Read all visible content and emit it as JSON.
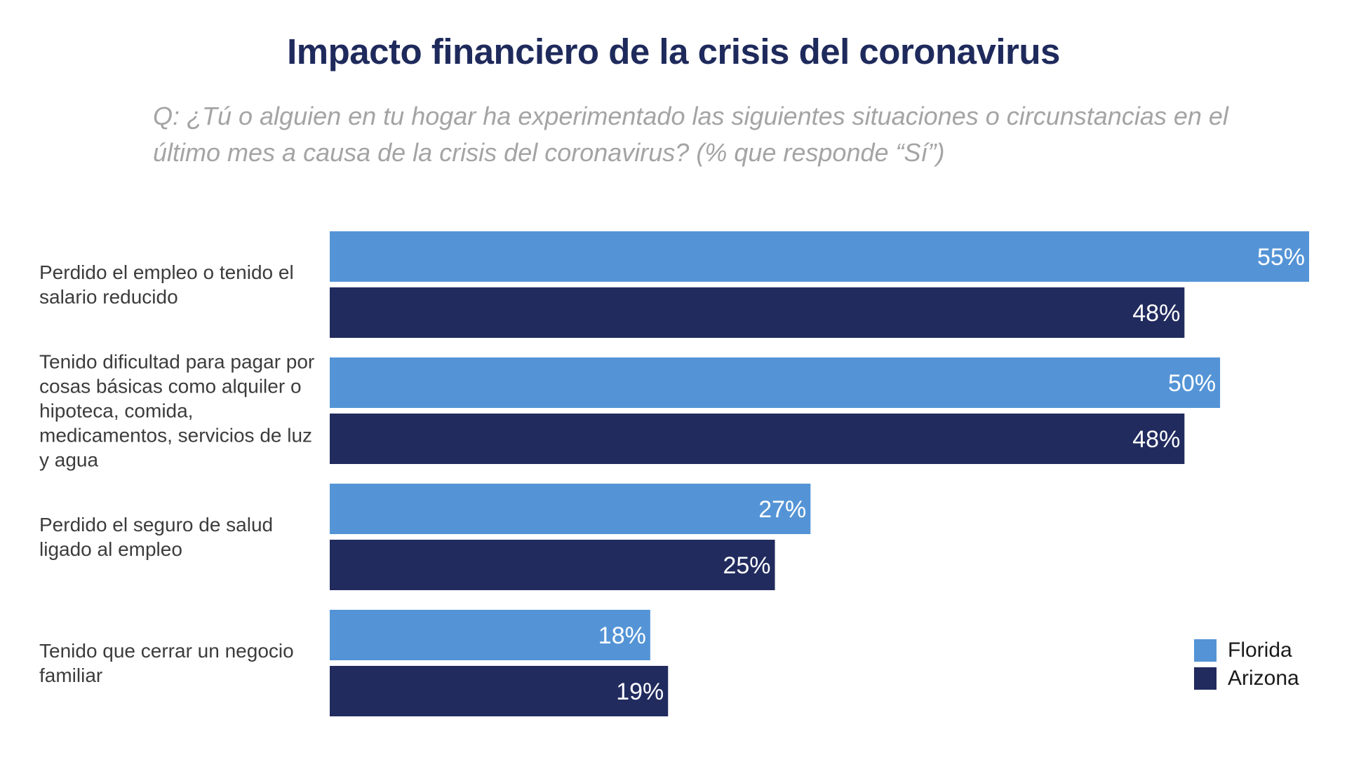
{
  "chart_data": {
    "type": "bar",
    "orientation": "horizontal",
    "title": "Impacto financiero de la crisis del coronavirus",
    "subtitle": "Q: ¿Tú o alguien en tu hogar ha experimentado las siguientes situaciones o circunstancias en el último mes a causa de la crisis del coronavirus? (% que responde “Sí”)",
    "categories": [
      "Perdido el empleo o tenido el salario reducido",
      "Tenido dificultad para pagar por cosas básicas como alquiler o hipoteca, comida, medicamentos, servicios de luz y agua",
      "Perdido el seguro de salud ligado al empleo",
      "Tenido que cerrar un negocio familiar"
    ],
    "series": [
      {
        "name": "Florida",
        "color": "#5494d6",
        "values": [
          55,
          50,
          27,
          18
        ],
        "labels": [
          "55%",
          "50%",
          "27%",
          "18%"
        ]
      },
      {
        "name": "Arizona",
        "color": "#212b5e",
        "values": [
          48,
          48,
          25,
          19
        ],
        "labels": [
          "48%",
          "48%",
          "25%",
          "19%"
        ]
      }
    ],
    "xlim": [
      0,
      55
    ],
    "grid": false,
    "legend": "bottom-right"
  }
}
